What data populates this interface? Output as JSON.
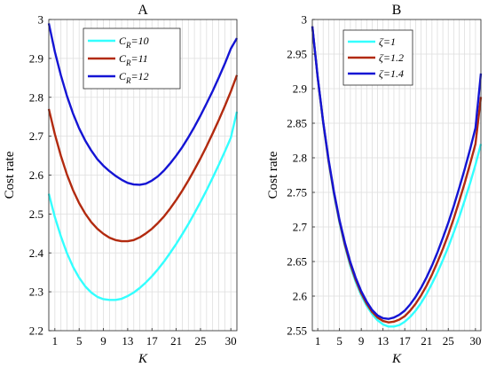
{
  "chart_data": [
    {
      "type": "line",
      "title": "A",
      "xlabel": "K",
      "ylabel": "Cost rate",
      "xlim": [
        0,
        31
      ],
      "ylim": [
        2.2,
        3.0
      ],
      "xticks": [
        1,
        5,
        9,
        13,
        17,
        21,
        25,
        30
      ],
      "yticks": [
        2.2,
        2.3,
        2.4,
        2.5,
        2.6,
        2.7,
        2.8,
        2.9,
        3.0
      ],
      "ytick_labels": [
        "2.2",
        "2.3",
        "2.4",
        "2.5",
        "2.6",
        "2.7",
        "2.8",
        "2.9",
        "3"
      ],
      "grid": true,
      "legend_position": "top-left",
      "legend_title": "",
      "x": [
        0,
        1,
        2,
        3,
        4,
        5,
        6,
        7,
        8,
        9,
        10,
        11,
        12,
        13,
        14,
        15,
        16,
        17,
        18,
        19,
        20,
        21,
        22,
        23,
        24,
        25,
        26,
        27,
        28,
        29,
        30,
        31
      ],
      "series": [
        {
          "name": "C_R=10",
          "legend_main": "C",
          "legend_sub": "R",
          "legend_tail": "=10",
          "color": "#33ffff",
          "values": [
            2.552,
            2.492,
            2.442,
            2.399,
            2.364,
            2.336,
            2.314,
            2.298,
            2.287,
            2.281,
            2.279,
            2.279,
            2.282,
            2.289,
            2.298,
            2.31,
            2.324,
            2.34,
            2.358,
            2.378,
            2.4,
            2.423,
            2.448,
            2.474,
            2.502,
            2.531,
            2.561,
            2.593,
            2.626,
            2.66,
            2.696,
            2.763
          ]
        },
        {
          "name": "C_R=11",
          "legend_main": "C",
          "legend_sub": "R",
          "legend_tail": "=11",
          "color": "#b22a0f",
          "values": [
            2.77,
            2.705,
            2.649,
            2.601,
            2.561,
            2.528,
            2.501,
            2.479,
            2.462,
            2.449,
            2.439,
            2.433,
            2.43,
            2.43,
            2.433,
            2.44,
            2.45,
            2.462,
            2.477,
            2.494,
            2.514,
            2.536,
            2.56,
            2.586,
            2.614,
            2.643,
            2.674,
            2.707,
            2.741,
            2.777,
            2.815,
            2.857
          ]
        },
        {
          "name": "C_R=12",
          "legend_main": "C",
          "legend_sub": "R",
          "legend_tail": "=12",
          "color": "#1414d4",
          "values": [
            2.99,
            2.917,
            2.856,
            2.803,
            2.758,
            2.72,
            2.689,
            2.663,
            2.641,
            2.624,
            2.61,
            2.598,
            2.588,
            2.58,
            2.576,
            2.575,
            2.578,
            2.586,
            2.597,
            2.612,
            2.63,
            2.65,
            2.672,
            2.697,
            2.724,
            2.753,
            2.784,
            2.816,
            2.85,
            2.886,
            2.925,
            2.952
          ]
        }
      ]
    },
    {
      "type": "line",
      "title": "B",
      "xlabel": "K",
      "ylabel": "Cost rate",
      "xlim": [
        0,
        31
      ],
      "ylim": [
        2.55,
        3.0
      ],
      "xticks": [
        1,
        5,
        9,
        13,
        17,
        21,
        25,
        30
      ],
      "yticks": [
        2.55,
        2.6,
        2.65,
        2.7,
        2.75,
        2.8,
        2.85,
        2.9,
        2.95,
        3.0
      ],
      "ytick_labels": [
        "2.55",
        "2.6",
        "2.65",
        "2.7",
        "2.75",
        "2.8",
        "2.85",
        "2.9",
        "2.95",
        "3"
      ],
      "grid": true,
      "legend_position": "top-center",
      "legend_title": "",
      "x": [
        0,
        1,
        2,
        3,
        4,
        5,
        6,
        7,
        8,
        9,
        10,
        11,
        12,
        13,
        14,
        15,
        16,
        17,
        18,
        19,
        20,
        21,
        22,
        23,
        24,
        25,
        26,
        27,
        28,
        29,
        30,
        31
      ],
      "series": [
        {
          "name": "ζ=1",
          "legend_main": "ζ=1",
          "legend_sub": "",
          "legend_tail": "",
          "color": "#33ffff",
          "values": [
            2.99,
            2.915,
            2.85,
            2.794,
            2.746,
            2.706,
            2.672,
            2.643,
            2.62,
            2.601,
            2.586,
            2.574,
            2.565,
            2.559,
            2.556,
            2.556,
            2.558,
            2.563,
            2.57,
            2.579,
            2.59,
            2.603,
            2.618,
            2.634,
            2.652,
            2.671,
            2.692,
            2.714,
            2.738,
            2.763,
            2.79,
            2.82
          ]
        },
        {
          "name": "ζ=1.2",
          "legend_main": "ζ=1.2",
          "legend_sub": "",
          "legend_tail": "",
          "color": "#b22a0f",
          "values": [
            2.99,
            2.915,
            2.851,
            2.795,
            2.748,
            2.708,
            2.674,
            2.646,
            2.623,
            2.604,
            2.589,
            2.577,
            2.569,
            2.564,
            2.562,
            2.563,
            2.566,
            2.571,
            2.579,
            2.589,
            2.601,
            2.615,
            2.631,
            2.649,
            2.668,
            2.689,
            2.712,
            2.737,
            2.763,
            2.791,
            2.82,
            2.888
          ]
        },
        {
          "name": "ζ=1.4",
          "legend_main": "ζ=1.4",
          "legend_sub": "",
          "legend_tail": "",
          "color": "#1414d4",
          "values": [
            2.99,
            2.916,
            2.852,
            2.797,
            2.75,
            2.71,
            2.677,
            2.649,
            2.626,
            2.607,
            2.592,
            2.58,
            2.572,
            2.568,
            2.567,
            2.569,
            2.573,
            2.579,
            2.588,
            2.599,
            2.612,
            2.627,
            2.644,
            2.663,
            2.684,
            2.706,
            2.73,
            2.756,
            2.783,
            2.812,
            2.843,
            2.922
          ]
        }
      ]
    }
  ]
}
